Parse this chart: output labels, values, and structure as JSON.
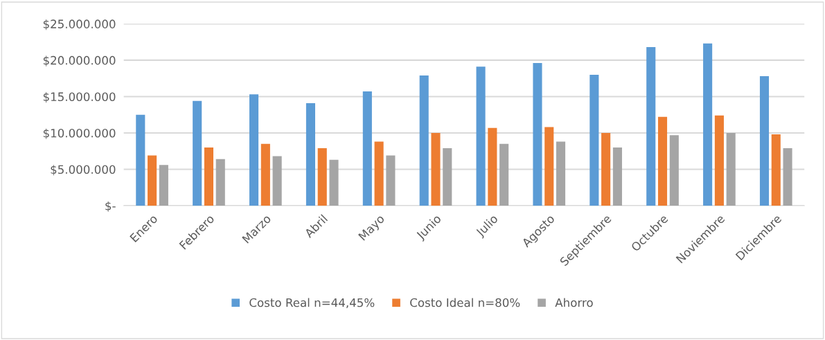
{
  "chart_data": {
    "type": "bar",
    "categories": [
      "Enero",
      "Febrero",
      "Marzo",
      "Abril",
      "Mayo",
      "Junio",
      "Julio",
      "Agosto",
      "Septiembre",
      "Octubre",
      "Noviembre",
      "Diciembre"
    ],
    "series": [
      {
        "name": "Costo Real n=44,45%",
        "color": "#5b9bd5",
        "values": [
          12500000,
          14400000,
          15300000,
          14100000,
          15700000,
          17900000,
          19100000,
          19600000,
          18000000,
          21800000,
          22300000,
          17800000
        ]
      },
      {
        "name": "Costo Ideal n=80%",
        "color": "#ed7d31",
        "values": [
          6900000,
          8000000,
          8500000,
          7900000,
          8800000,
          10000000,
          10700000,
          10800000,
          10000000,
          12200000,
          12400000,
          9800000
        ]
      },
      {
        "name": "Ahorro",
        "color": "#a5a5a5",
        "values": [
          5600000,
          6400000,
          6800000,
          6300000,
          6900000,
          7900000,
          8500000,
          8800000,
          8000000,
          9700000,
          10000000,
          7900000
        ]
      }
    ],
    "ylim": [
      0,
      25000000
    ],
    "yticks": [
      {
        "value": 0,
        "label": "$-"
      },
      {
        "value": 5000000,
        "label": "$5.000.000"
      },
      {
        "value": 10000000,
        "label": "$10.000.000"
      },
      {
        "value": 15000000,
        "label": "$15.000.000"
      },
      {
        "value": 20000000,
        "label": "$20.000.000"
      },
      {
        "value": 25000000,
        "label": "$25.000.000"
      }
    ],
    "grid": "y",
    "legend": "bottom"
  }
}
